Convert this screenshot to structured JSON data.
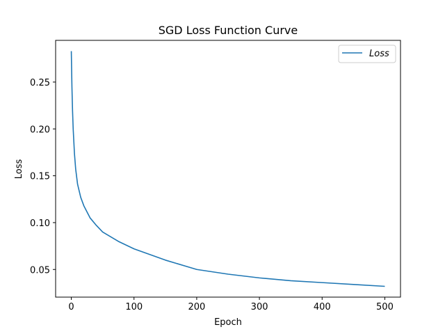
{
  "chart_data": {
    "type": "line",
    "title": "SGD Loss Function Curve",
    "xlabel": "Epoch",
    "ylabel": "Loss",
    "xlim": [
      -25,
      525
    ],
    "ylim": [
      0.0205,
      0.2945
    ],
    "xticks": [
      0,
      100,
      200,
      300,
      400,
      500
    ],
    "xtick_labels": [
      "0",
      "100",
      "200",
      "300",
      "400",
      "500"
    ],
    "yticks": [
      0.05,
      0.1,
      0.15,
      0.2,
      0.25
    ],
    "ytick_labels": [
      "0.05",
      "0.10",
      "0.15",
      "0.20",
      "0.25"
    ],
    "grid": false,
    "legend_position": "upper right",
    "series": [
      {
        "name": "Loss",
        "color": "#1f77b4",
        "x": [
          0,
          1,
          2,
          3,
          5,
          7,
          10,
          15,
          20,
          30,
          40,
          50,
          75,
          100,
          150,
          200,
          250,
          300,
          350,
          400,
          450,
          500
        ],
        "values": [
          0.283,
          0.245,
          0.219,
          0.2,
          0.174,
          0.157,
          0.141,
          0.127,
          0.118,
          0.105,
          0.097,
          0.09,
          0.08,
          0.072,
          0.06,
          0.05,
          0.045,
          0.041,
          0.038,
          0.036,
          0.034,
          0.032
        ]
      }
    ]
  },
  "legend": {
    "label": "Loss"
  }
}
